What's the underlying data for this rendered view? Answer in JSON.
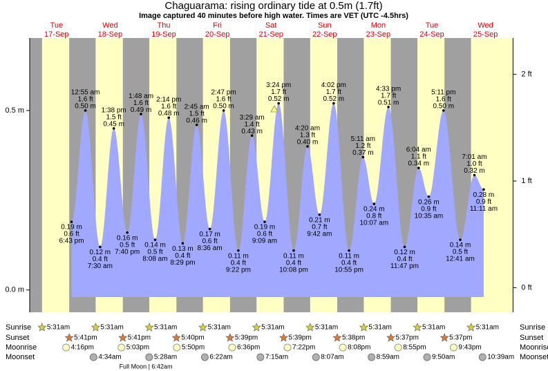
{
  "chart_data": {
    "type": "tide",
    "title": "Chaguarama: rising  ordinary tide at 0.5m (1.7ft)",
    "subtitle": "Image captured 40 minutes before high water. Times are VET (UTC -4.5hrs)",
    "ylim": [
      -0.062,
      0.702
    ],
    "yticks": [
      {
        "value": 0,
        "label": "0.0 m"
      },
      {
        "value": 0.5,
        "label": "0.5 m"
      }
    ],
    "y2lim": [
      -0.23,
      2.34
    ],
    "y2ticks": [
      {
        "value": 0,
        "label": "0 ft"
      },
      {
        "value": 1,
        "label": "1 ft"
      },
      {
        "value": 2,
        "label": "2 ft"
      }
    ],
    "days": [
      {
        "weekday": "Tue",
        "date": "17-Sep",
        "extremes": [
          {
            "time": "6:43 pm",
            "ft": {
              "value": 0.6,
              "label": "0.6 ft"
            },
            "m": {
              "value": 0.19,
              "label": "0.19 m"
            }
          }
        ]
      },
      {
        "weekday": "Wed",
        "date": "18-Sep",
        "extremes": [
          {
            "time": "12:55 am",
            "ft": {
              "value": 1.6,
              "label": "1.6 ft"
            },
            "m": {
              "value": 0.5,
              "label": "0.50 m"
            }
          },
          {
            "time": "7:30 am",
            "ft": {
              "value": 0.4,
              "label": "0.4 ft"
            },
            "m": {
              "value": 0.12,
              "label": "0.12 m"
            }
          },
          {
            "time": "1:38 pm",
            "ft": {
              "value": 1.5,
              "label": "1.5 ft"
            },
            "m": {
              "value": 0.45,
              "label": "0.45 m"
            }
          },
          {
            "time": "7:40 pm",
            "ft": {
              "value": 0.5,
              "label": "0.5 ft"
            },
            "m": {
              "value": 0.16,
              "label": "0.16 m"
            }
          }
        ]
      },
      {
        "weekday": "Thu",
        "date": "19-Sep",
        "extremes": [
          {
            "time": "1:48 am",
            "ft": {
              "value": 1.6,
              "label": "1.6 ft"
            },
            "m": {
              "value": 0.49,
              "label": "0.49 m"
            }
          },
          {
            "time": "8:08 am",
            "ft": {
              "value": 0.5,
              "label": "0.5 ft"
            },
            "m": {
              "value": 0.14,
              "label": "0.14 m"
            }
          },
          {
            "time": "2:14 pm",
            "ft": {
              "value": 1.6,
              "label": "1.6 ft"
            },
            "m": {
              "value": 0.48,
              "label": "0.48 m"
            }
          },
          {
            "time": "8:29 pm",
            "ft": {
              "value": 0.4,
              "label": "0.4 ft"
            },
            "m": {
              "value": 0.13,
              "label": "0.13 m"
            }
          }
        ]
      },
      {
        "weekday": "Fri",
        "date": "20-Sep",
        "extremes": [
          {
            "time": "2:45 am",
            "ft": {
              "value": 1.5,
              "label": "1.5 ft"
            },
            "m": {
              "value": 0.46,
              "label": "0.46 m"
            }
          },
          {
            "time": "8:36 am",
            "ft": {
              "value": 0.6,
              "label": "0.6 ft"
            },
            "m": {
              "value": 0.17,
              "label": "0.17 m"
            }
          },
          {
            "time": "2:47 pm",
            "ft": {
              "value": 1.6,
              "label": "1.6 ft"
            },
            "m": {
              "value": 0.5,
              "label": "0.50 m"
            }
          },
          {
            "time": "9:22 pm",
            "ft": {
              "value": 0.4,
              "label": "0.4 ft"
            },
            "m": {
              "value": 0.11,
              "label": "0.11 m"
            }
          }
        ]
      },
      {
        "weekday": "Sat",
        "date": "21-Sep",
        "extremes": [
          {
            "time": "3:29 am",
            "ft": {
              "value": 1.4,
              "label": "1.4 ft"
            },
            "m": {
              "value": 0.43,
              "label": "0.43 m"
            }
          },
          {
            "time": "9:09 am",
            "ft": {
              "value": 0.6,
              "label": "0.6 ft"
            },
            "m": {
              "value": 0.19,
              "label": "0.19 m"
            }
          },
          {
            "time": "3:24 pm",
            "ft": {
              "value": 1.7,
              "label": "1.7 ft"
            },
            "m": {
              "value": 0.52,
              "label": "0.52 m"
            }
          },
          {
            "time": "10:08 pm",
            "ft": {
              "value": 0.4,
              "label": "0.4 ft"
            },
            "m": {
              "value": 0.11,
              "label": "0.11 m"
            }
          }
        ]
      },
      {
        "weekday": "Sun",
        "date": "22-Sep",
        "extremes": [
          {
            "time": "4:20 am",
            "ft": {
              "value": 1.3,
              "label": "1.3 ft"
            },
            "m": {
              "value": 0.4,
              "label": "0.40 m"
            }
          },
          {
            "time": "9:42 am",
            "ft": {
              "value": 0.7,
              "label": "0.7 ft"
            },
            "m": {
              "value": 0.21,
              "label": "0.21 m"
            }
          },
          {
            "time": "4:02 pm",
            "ft": {
              "value": 1.7,
              "label": "1.7 ft"
            },
            "m": {
              "value": 0.52,
              "label": "0.52 m"
            }
          },
          {
            "time": "10:55 pm",
            "ft": {
              "value": 0.4,
              "label": "0.4 ft"
            },
            "m": {
              "value": 0.11,
              "label": "0.11 m"
            }
          }
        ]
      },
      {
        "weekday": "Mon",
        "date": "23-Sep",
        "extremes": [
          {
            "time": "5:11 am",
            "ft": {
              "value": 1.2,
              "label": "1.2 ft"
            },
            "m": {
              "value": 0.37,
              "label": "0.37 m"
            }
          },
          {
            "time": "10:07 am",
            "ft": {
              "value": 0.8,
              "label": "0.8 ft"
            },
            "m": {
              "value": 0.24,
              "label": "0.24 m"
            }
          },
          {
            "time": "4:33 pm",
            "ft": {
              "value": 1.7,
              "label": "1.7 ft"
            },
            "m": {
              "value": 0.51,
              "label": "0.51 m"
            }
          },
          {
            "time": "11:47 pm",
            "ft": {
              "value": 0.4,
              "label": "0.4 ft"
            },
            "m": {
              "value": 0.12,
              "label": "0.12 m"
            }
          }
        ]
      },
      {
        "weekday": "Tue",
        "date": "24-Sep",
        "extremes": [
          {
            "time": "6:04 am",
            "ft": {
              "value": 1.1,
              "label": "1.1 ft"
            },
            "m": {
              "value": 0.34,
              "label": "0.34 m"
            }
          },
          {
            "time": "10:35 am",
            "ft": {
              "value": 0.9,
              "label": "0.9 ft"
            },
            "m": {
              "value": 0.26,
              "label": "0.26 m"
            }
          },
          {
            "time": "5:11 pm",
            "ft": {
              "value": 1.6,
              "label": "1.6 ft"
            },
            "m": {
              "value": 0.5,
              "label": "0.50 m"
            }
          }
        ]
      },
      {
        "weekday": "Wed",
        "date": "25-Sep",
        "extremes": [
          {
            "time": "12:41 am",
            "ft": {
              "value": 0.5,
              "label": "0.5 ft"
            },
            "m": {
              "value": 0.14,
              "label": "0.14 m"
            }
          },
          {
            "time": "7:01 am",
            "ft": {
              "value": 1.0,
              "label": "1.0 ft"
            },
            "m": {
              "value": 0.32,
              "label": "0.32 m"
            }
          },
          {
            "time": "11:11 am",
            "ft": {
              "value": 0.9,
              "label": "0.9 ft"
            },
            "m": {
              "value": 0.28,
              "label": "0.28 m"
            }
          }
        ]
      }
    ],
    "almanac": [
      {
        "name": "Sunrise",
        "times": [
          "5:31am",
          "5:31am",
          "5:31am",
          "5:31am",
          "5:31am",
          "5:31am",
          "5:31am",
          "5:31am",
          "5:31am"
        ]
      },
      {
        "name": "Sunset",
        "times": [
          "5:41pm",
          "5:41pm",
          "5:40pm",
          "5:39pm",
          "5:39pm",
          "5:38pm",
          "5:37pm",
          "5:37pm",
          null
        ]
      },
      {
        "name": "Moonrise",
        "times": [
          "4:16pm",
          "5:03pm",
          "5:50pm",
          "6:36pm",
          "7:22pm",
          "8:08pm",
          "8:55pm",
          "9:43pm",
          null
        ]
      },
      {
        "name": "Moonset",
        "times": [
          null,
          "4:34am",
          "5:28am",
          "6:22am",
          "7:15am",
          "8:07am",
          "8:59am",
          "9:50am",
          "10:39am"
        ]
      }
    ],
    "moon_phase": "Full Moon | 6:42am"
  }
}
